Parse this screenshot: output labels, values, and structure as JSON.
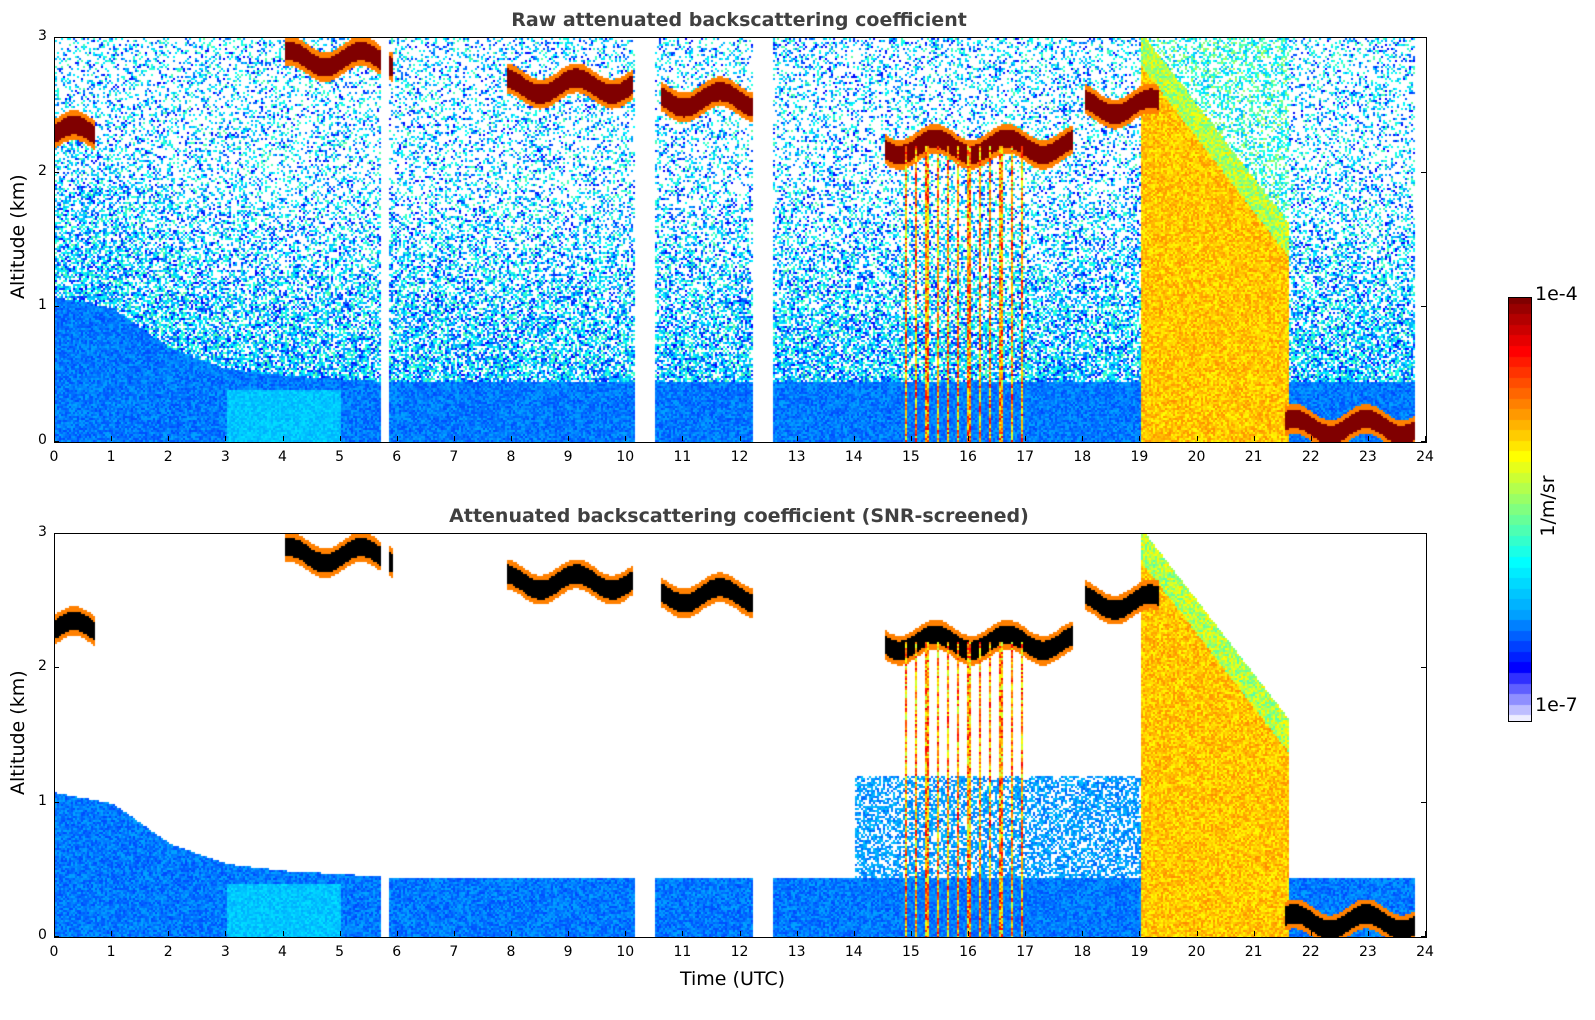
{
  "colors": {
    "colormap": [
      "#eeeeff",
      "#0000ff",
      "#00a0ff",
      "#00ffff",
      "#80ff80",
      "#ffff00",
      "#ff8000",
      "#ff0000",
      "#800000"
    ],
    "cloud_top_screened": "#000000"
  },
  "colorbar": {
    "label": "1/m/sr",
    "max_label": "1e-4",
    "min_label": "1e-7",
    "scale": "log",
    "range": [
      1e-07,
      0.0001
    ]
  },
  "chart_data": [
    {
      "type": "heatmap",
      "title": "Raw attenuated backscattering coefficient",
      "xlabel": "",
      "ylabel": "Altitude (km)",
      "xlim": [
        0,
        24
      ],
      "ylim": [
        0,
        3
      ],
      "x_ticks": [
        "0",
        "1",
        "2",
        "3",
        "4",
        "5",
        "6",
        "7",
        "8",
        "9",
        "10",
        "11",
        "12",
        "13",
        "14",
        "15",
        "16",
        "17",
        "18",
        "19",
        "20",
        "21",
        "22",
        "23",
        "24"
      ],
      "y_ticks": [
        "0",
        "1",
        "2",
        "3"
      ],
      "data_gaps_hours": [
        [
          5.7,
          5.82
        ],
        [
          10.15,
          10.5
        ],
        [
          12.2,
          12.55
        ]
      ],
      "boundary_layer_top_km": [
        [
          0,
          1.08
        ],
        [
          1,
          1.0
        ],
        [
          2,
          0.7
        ],
        [
          3,
          0.55
        ],
        [
          4,
          0.5
        ],
        [
          6,
          0.45
        ],
        [
          8,
          0.45
        ],
        [
          10,
          0.45
        ],
        [
          12,
          0.45
        ]
      ],
      "cloud_layers": [
        {
          "start": 0.0,
          "end": 0.7,
          "alt_km": 2.3
        },
        {
          "start": 4.0,
          "end": 5.9,
          "alt_km": 2.85
        },
        {
          "start": 7.9,
          "end": 10.1,
          "alt_km": 2.65
        },
        {
          "start": 10.6,
          "end": 12.2,
          "alt_km": 2.55
        },
        {
          "start": 14.5,
          "end": 17.8,
          "alt_km": 2.2
        },
        {
          "start": 18.0,
          "end": 19.3,
          "alt_km": 2.5
        },
        {
          "start": 21.5,
          "end": 23.8,
          "alt_km": 0.12
        }
      ],
      "thick_cloud_region_hours": [
        19.0,
        21.6
      ]
    },
    {
      "type": "heatmap",
      "title": "Attenuated backscattering coefficient (SNR-screened)",
      "xlabel": "Time (UTC)",
      "ylabel": "Altitude (km)",
      "xlim": [
        0,
        24
      ],
      "ylim": [
        0,
        3
      ],
      "x_ticks": [
        "0",
        "1",
        "2",
        "3",
        "4",
        "5",
        "6",
        "7",
        "8",
        "9",
        "10",
        "11",
        "12",
        "13",
        "14",
        "15",
        "16",
        "17",
        "18",
        "19",
        "20",
        "21",
        "22",
        "23",
        "24"
      ],
      "y_ticks": [
        "0",
        "1",
        "2",
        "3"
      ]
    }
  ]
}
